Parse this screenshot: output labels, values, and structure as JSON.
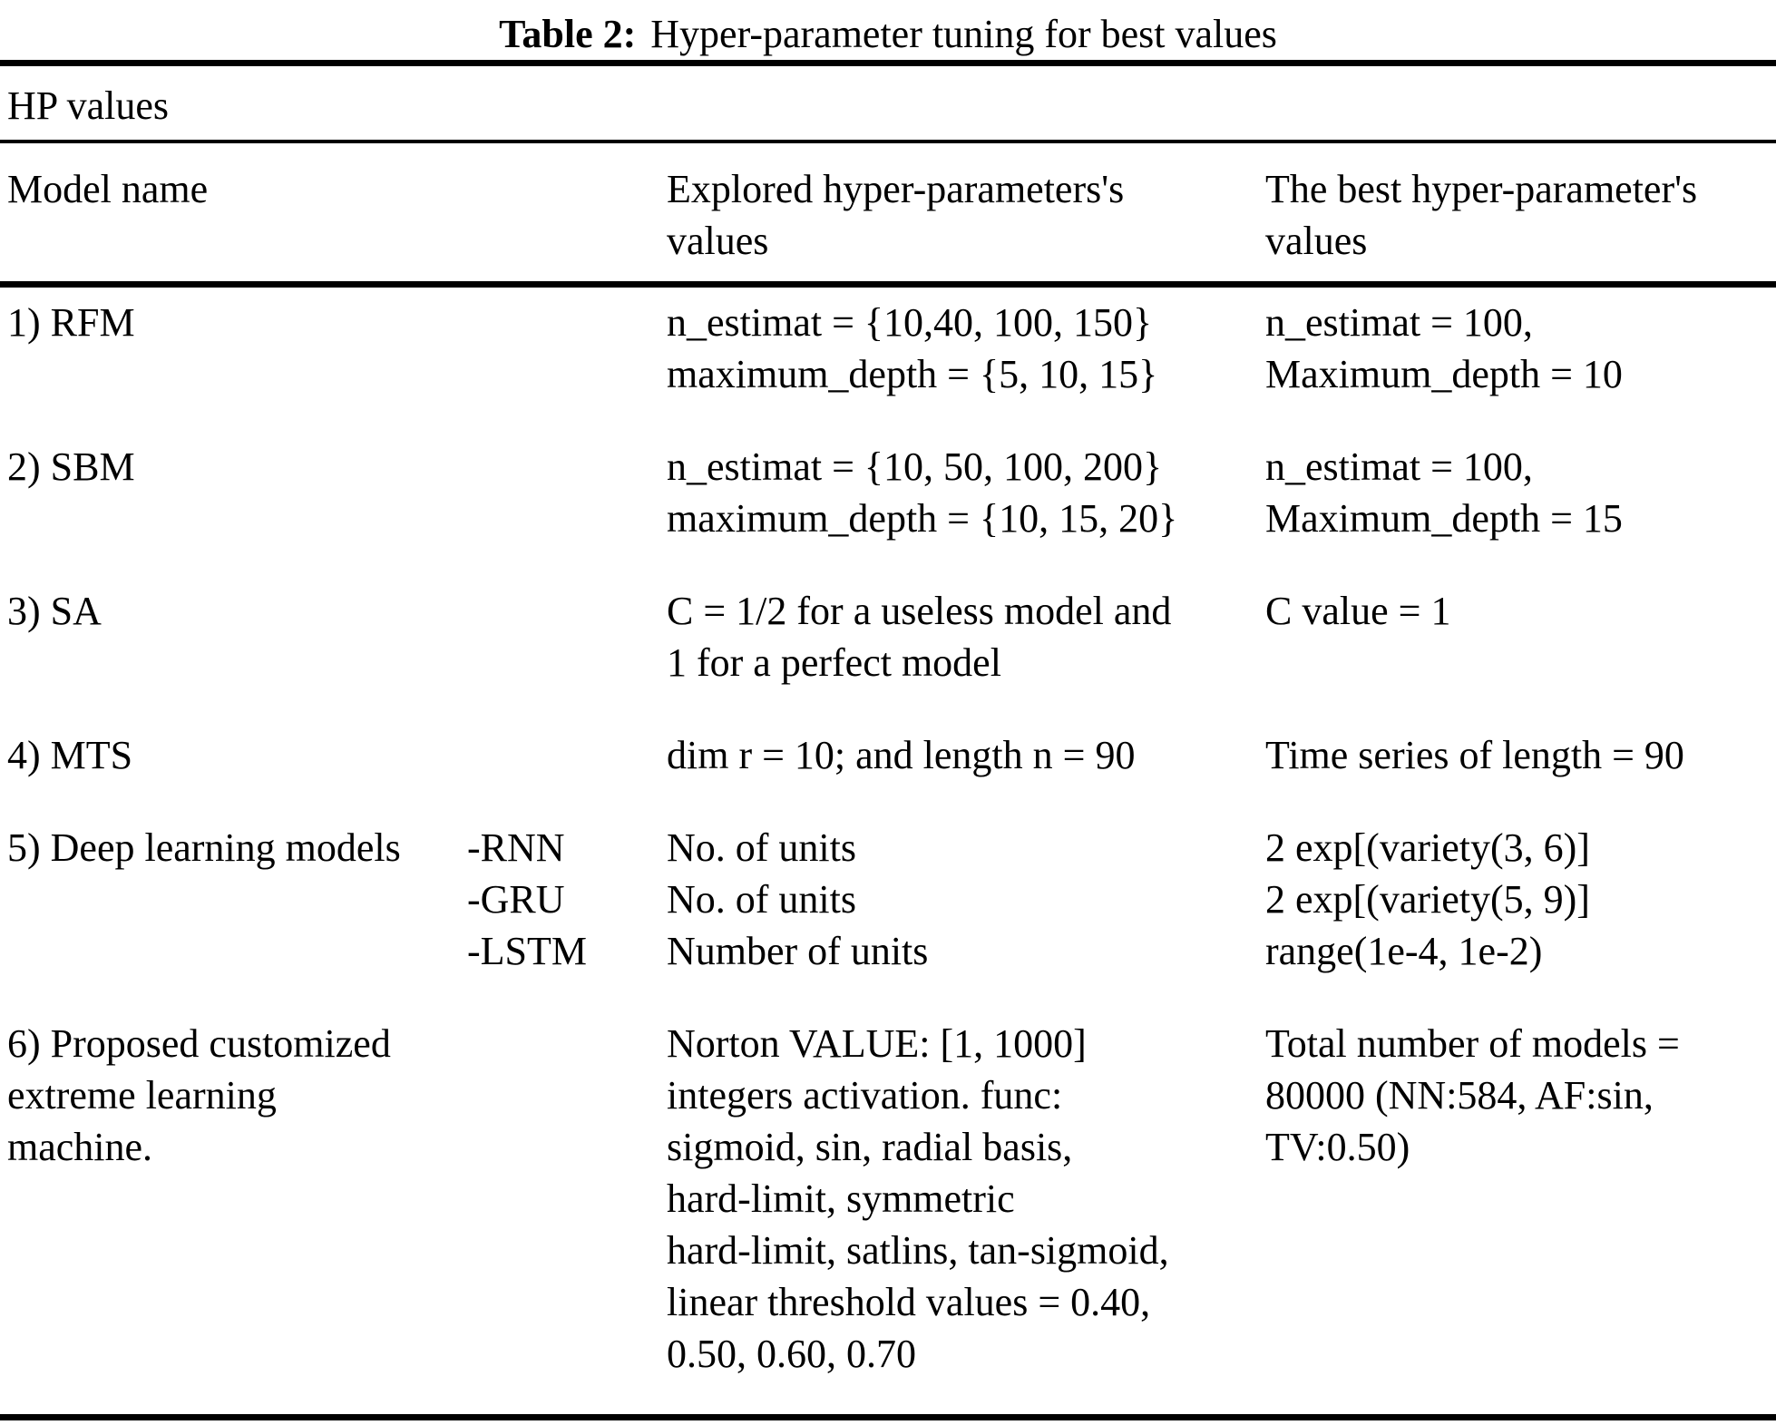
{
  "page": {
    "title": {
      "label": "Table 2:",
      "text": "Hyper-parameter tuning for best values"
    }
  },
  "table": {
    "hp_header": "HP values",
    "columns": {
      "model": "Model name",
      "explored": [
        "Explored hyper-parameters's",
        "values"
      ],
      "best": [
        "The best hyper-parameter's",
        "values"
      ]
    },
    "rows": [
      {
        "model": "1) RFM",
        "sub": "",
        "explored": [
          "n_estimat = {10,40, 100, 150}",
          "maximum_depth = {5, 10, 15}"
        ],
        "best": [
          "n_estimat = 100,",
          "Maximum_depth = 10"
        ]
      },
      {
        "model": "2) SBM",
        "sub": "",
        "explored": [
          "n_estimat = {10, 50, 100, 200}",
          "maximum_depth = {10, 15, 20}"
        ],
        "best": [
          "n_estimat = 100,",
          "Maximum_depth = 15"
        ]
      },
      {
        "model": "3) SA",
        "sub": "",
        "explored": [
          "C = 1/2 for a useless model and",
          "1 for a perfect model"
        ],
        "best": [
          "C value = 1"
        ]
      },
      {
        "model": "4) MTS",
        "sub": "",
        "explored": [
          "dim r = 10; and length n = 90"
        ],
        "best": [
          "Time series of length = 90"
        ]
      },
      {
        "model": "5) Deep learning models",
        "sub": [
          "-RNN",
          "-GRU",
          "-LSTM"
        ],
        "explored": [
          "No. of units",
          "No. of units",
          "Number of units"
        ],
        "best": [
          "2 exp[(variety(3, 6)]",
          "2 exp[(variety(5, 9)]",
          "range(1e-4, 1e-2)"
        ]
      },
      {
        "model": [
          "6) Proposed customized",
          "extreme learning",
          "machine."
        ],
        "sub": "",
        "explored": [
          "Norton VALUE: [1, 1000]",
          "integers activation. func:",
          "sigmoid, sin, radial basis,",
          "hard-limit, symmetric",
          "hard-limit, satlins, tan-sigmoid,",
          "linear threshold values = 0.40,",
          "0.50, 0.60, 0.70"
        ],
        "best": [
          "Total number of models =",
          "80000 (NN:584, AF:sin,",
          "TV:0.50)"
        ]
      }
    ]
  }
}
